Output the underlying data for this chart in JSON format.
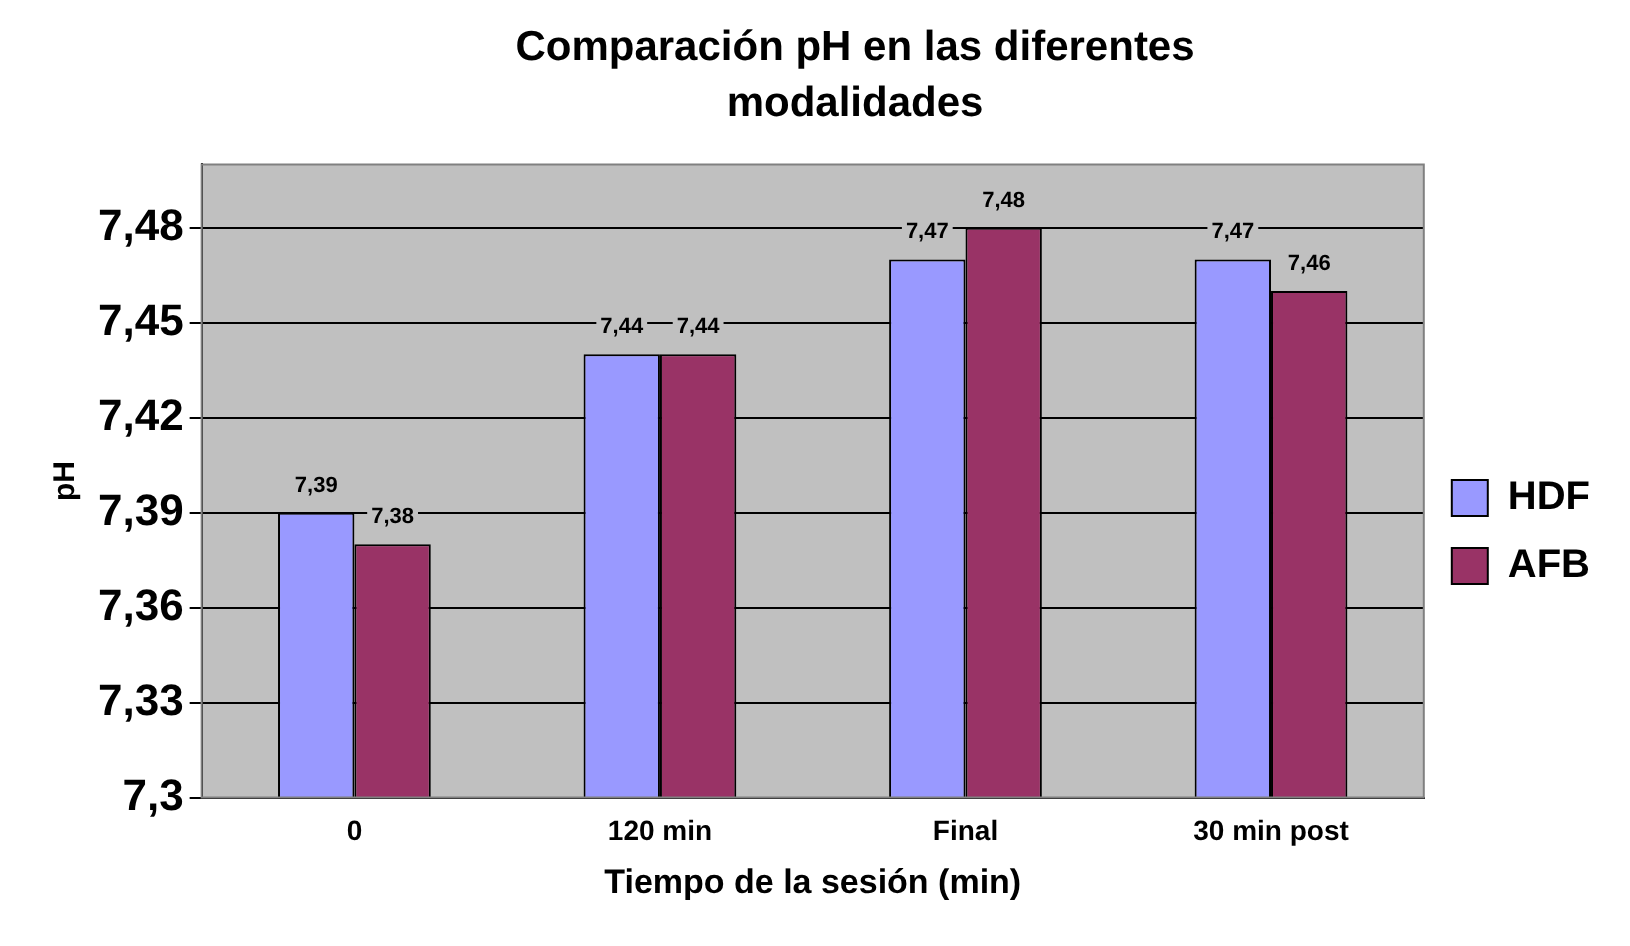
{
  "chart_data": {
    "type": "bar",
    "title": "Comparación pH en las diferentes modalidades",
    "xlabel": "Tiempo de la sesión (min)",
    "ylabel": "pH",
    "categories": [
      "0",
      "120 min",
      "Final",
      "30 min post"
    ],
    "series": [
      {
        "name": "HDF",
        "color": "#9999ff",
        "values": [
          7.39,
          7.44,
          7.47,
          7.47
        ],
        "value_labels": [
          "7,39",
          "7,44",
          "7,47",
          "7,47"
        ]
      },
      {
        "name": "AFB",
        "color": "#993366",
        "values": [
          7.38,
          7.44,
          7.48,
          7.46
        ],
        "value_labels": [
          "7,38",
          "7,44",
          "7,48",
          "7,46"
        ]
      }
    ],
    "ylim": [
      7.3,
      7.5
    ],
    "yticks": [
      {
        "value": 7.3,
        "label": "7,3"
      },
      {
        "value": 7.33,
        "label": "7,33"
      },
      {
        "value": 7.36,
        "label": "7,36"
      },
      {
        "value": 7.39,
        "label": "7,39"
      },
      {
        "value": 7.42,
        "label": "7,42"
      },
      {
        "value": 7.45,
        "label": "7,45"
      },
      {
        "value": 7.48,
        "label": "7,48"
      }
    ],
    "grid": "y",
    "legend": "right"
  }
}
